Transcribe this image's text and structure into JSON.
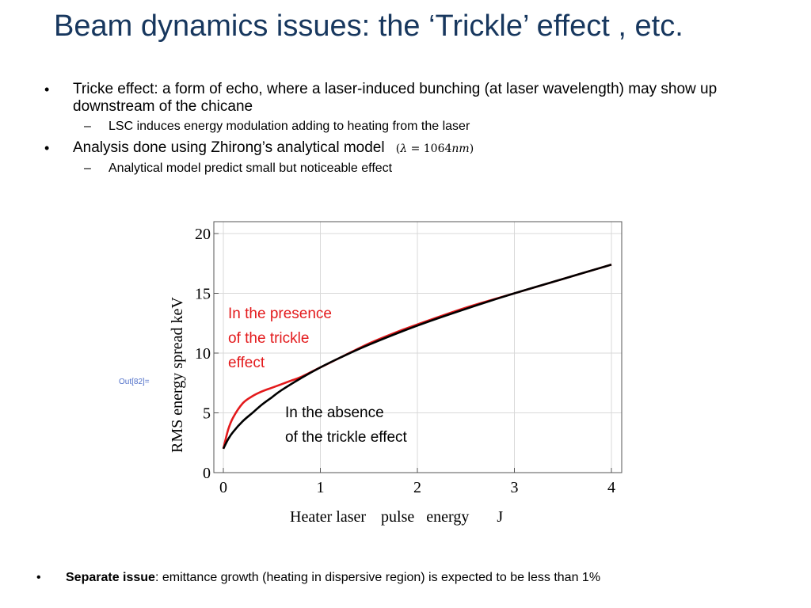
{
  "slide": {
    "title": "Beam dynamics issues: the ‘Trickle’ effect , etc."
  },
  "bullets": [
    {
      "text": "Tricke effect: a form of echo, where a laser-induced bunching (at laser wavelength) may show up  downstream  of  the chicane",
      "subs": [
        "LSC induces  energy modulation  adding to heating from the laser"
      ]
    },
    {
      "text": "Analysis done using Zhirong’s  analytical model",
      "math": {
        "open": "(",
        "lambda": "λ",
        "equals": " = 1064",
        "unit": "nm",
        "close": ")"
      },
      "subs": [
        "Analytical model predict small but noticeable effect"
      ]
    }
  ],
  "output_label": "Out[82]=",
  "bottom_note": {
    "bold": "Separate issue",
    "text": ":  emittance growth  (heating in dispersive region) is expected to be less than 1%"
  },
  "colors": {
    "title": "#17375e",
    "with_trickle": "#e31a1c",
    "without_trickle": "#000000",
    "grid": "#d9d9d9"
  },
  "chart_data": {
    "type": "line",
    "xlabel_parts": [
      "Heater laser",
      "pulse",
      "energy",
      "J"
    ],
    "ylabel_parts": [
      "RMS energy spread",
      "keV"
    ],
    "xlim": [
      0,
      4
    ],
    "ylim": [
      0,
      20
    ],
    "xticks": [
      0,
      1,
      2,
      3,
      4
    ],
    "yticks": [
      0,
      5,
      10,
      15,
      20
    ],
    "grid": true,
    "annotations": {
      "with": [
        "In the presence",
        "of the trickle",
        "effect"
      ],
      "without": [
        "In the absence",
        "of the trickle effect"
      ]
    },
    "series": [
      {
        "key": "with",
        "color": "#e31a1c",
        "x": [
          0,
          0.05,
          0.1,
          0.2,
          0.3,
          0.4,
          0.5,
          0.6,
          0.7,
          0.8,
          1.0,
          1.2,
          1.5,
          1.8,
          2.0,
          2.5,
          3.0,
          3.5,
          4.0
        ],
        "y": [
          2.0,
          3.6,
          4.6,
          5.8,
          6.4,
          6.8,
          7.1,
          7.4,
          7.7,
          8.0,
          8.8,
          9.6,
          10.8,
          11.8,
          12.4,
          13.8,
          15.0,
          16.2,
          17.4
        ]
      },
      {
        "key": "without",
        "color": "#000000",
        "x": [
          0,
          0.05,
          0.1,
          0.2,
          0.3,
          0.4,
          0.5,
          0.6,
          0.8,
          1.0,
          1.2,
          1.5,
          2.0,
          2.5,
          3.0,
          3.5,
          4.0
        ],
        "y": [
          2.0,
          2.8,
          3.4,
          4.3,
          5.0,
          5.7,
          6.3,
          6.9,
          7.9,
          8.8,
          9.6,
          10.7,
          12.3,
          13.7,
          15.0,
          16.2,
          17.4
        ]
      }
    ]
  }
}
